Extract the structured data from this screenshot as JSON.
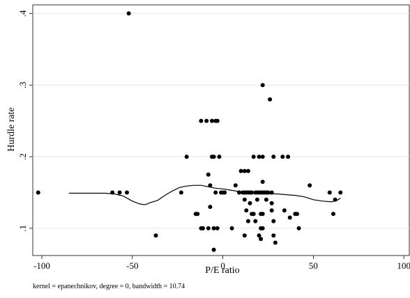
{
  "chart_data": {
    "type": "scatter",
    "xlabel": "P/E ratio",
    "ylabel": "Hurdle rate",
    "note": "kernel = epanechnikov, degree = 0, bandwidth = 10.74",
    "xlim": [
      -105,
      103
    ],
    "ylim": [
      0.062,
      0.412
    ],
    "xticks": [
      -100,
      -50,
      0,
      50,
      100
    ],
    "xtick_labels": [
      "-100",
      "-50",
      "0",
      "50",
      "100"
    ],
    "yticks": [
      0.1,
      0.2,
      0.3,
      0.4
    ],
    "ytick_labels": [
      ".1",
      ".2",
      ".3",
      ".4"
    ],
    "grid": "horizontal",
    "colors": {
      "points": "#000000",
      "line": "#000000",
      "grid": "#e6e6e6"
    },
    "points": [
      [
        -102,
        0.15
      ],
      [
        -61,
        0.15
      ],
      [
        -57,
        0.15
      ],
      [
        -53,
        0.15
      ],
      [
        -52,
        0.4
      ],
      [
        -37,
        0.09
      ],
      [
        -23,
        0.15
      ],
      [
        -20,
        0.2
      ],
      [
        -15,
        0.12
      ],
      [
        -14,
        0.12
      ],
      [
        -12,
        0.25
      ],
      [
        -12,
        0.1
      ],
      [
        -11,
        0.1
      ],
      [
        -9,
        0.25
      ],
      [
        -8,
        0.175
      ],
      [
        -8,
        0.1
      ],
      [
        -7,
        0.16
      ],
      [
        -7,
        0.13
      ],
      [
        -6,
        0.25
      ],
      [
        -6,
        0.2
      ],
      [
        -5,
        0.2
      ],
      [
        -5,
        0.1
      ],
      [
        -5,
        0.07
      ],
      [
        -4,
        0.25
      ],
      [
        -4,
        0.15
      ],
      [
        -3,
        0.25
      ],
      [
        -3,
        0.1
      ],
      [
        -2,
        0.2
      ],
      [
        -1,
        0.15
      ],
      [
        0,
        0.15
      ],
      [
        1,
        0.15
      ],
      [
        5,
        0.1
      ],
      [
        7,
        0.16
      ],
      [
        9,
        0.15
      ],
      [
        9,
        0.15
      ],
      [
        10,
        0.18
      ],
      [
        11,
        0.15
      ],
      [
        12,
        0.09
      ],
      [
        12,
        0.15
      ],
      [
        12,
        0.14
      ],
      [
        12,
        0.18
      ],
      [
        13,
        0.15
      ],
      [
        13,
        0.125
      ],
      [
        14,
        0.18
      ],
      [
        14,
        0.15
      ],
      [
        14,
        0.11
      ],
      [
        15,
        0.15
      ],
      [
        15,
        0.135
      ],
      [
        16,
        0.15
      ],
      [
        16,
        0.12
      ],
      [
        17,
        0.2
      ],
      [
        17,
        0.12
      ],
      [
        18,
        0.15
      ],
      [
        18,
        0.11
      ],
      [
        19,
        0.15
      ],
      [
        19,
        0.14
      ],
      [
        20,
        0.2
      ],
      [
        20,
        0.09
      ],
      [
        20,
        0.15
      ],
      [
        21,
        0.15
      ],
      [
        21,
        0.12
      ],
      [
        21,
        0.085
      ],
      [
        21,
        0.1
      ],
      [
        22,
        0.3
      ],
      [
        22,
        0.2
      ],
      [
        22,
        0.165
      ],
      [
        22,
        0.15
      ],
      [
        22,
        0.12
      ],
      [
        22,
        0.1
      ],
      [
        23,
        0.15
      ],
      [
        24,
        0.15
      ],
      [
        24,
        0.14
      ],
      [
        25,
        0.15
      ],
      [
        26,
        0.28
      ],
      [
        27,
        0.15
      ],
      [
        27,
        0.135
      ],
      [
        27,
        0.125
      ],
      [
        28,
        0.2
      ],
      [
        28,
        0.11
      ],
      [
        28,
        0.09
      ],
      [
        29,
        0.08
      ],
      [
        33,
        0.2
      ],
      [
        34,
        0.125
      ],
      [
        36,
        0.2
      ],
      [
        37,
        0.115
      ],
      [
        40,
        0.12
      ],
      [
        41,
        0.12
      ],
      [
        42,
        0.1
      ],
      [
        48,
        0.16
      ],
      [
        59,
        0.15
      ],
      [
        61,
        0.12
      ],
      [
        62,
        0.14
      ],
      [
        65,
        0.15
      ]
    ],
    "smooth_line": [
      [
        -85,
        0.149
      ],
      [
        -75,
        0.149
      ],
      [
        -65,
        0.149
      ],
      [
        -60,
        0.148
      ],
      [
        -55,
        0.145
      ],
      [
        -50,
        0.138
      ],
      [
        -46,
        0.134
      ],
      [
        -43,
        0.133
      ],
      [
        -40,
        0.136
      ],
      [
        -36,
        0.139
      ],
      [
        -32,
        0.146
      ],
      [
        -28,
        0.152
      ],
      [
        -24,
        0.157
      ],
      [
        -20,
        0.159
      ],
      [
        -16,
        0.16
      ],
      [
        -12,
        0.16
      ],
      [
        -8,
        0.158
      ],
      [
        -4,
        0.156
      ],
      [
        0,
        0.155
      ],
      [
        5,
        0.153
      ],
      [
        10,
        0.151
      ],
      [
        15,
        0.149
      ],
      [
        20,
        0.149
      ],
      [
        25,
        0.148
      ],
      [
        30,
        0.148
      ],
      [
        35,
        0.147
      ],
      [
        40,
        0.146
      ],
      [
        45,
        0.144
      ],
      [
        50,
        0.14
      ],
      [
        55,
        0.138
      ],
      [
        60,
        0.137
      ],
      [
        63,
        0.139
      ],
      [
        65,
        0.142
      ]
    ]
  }
}
